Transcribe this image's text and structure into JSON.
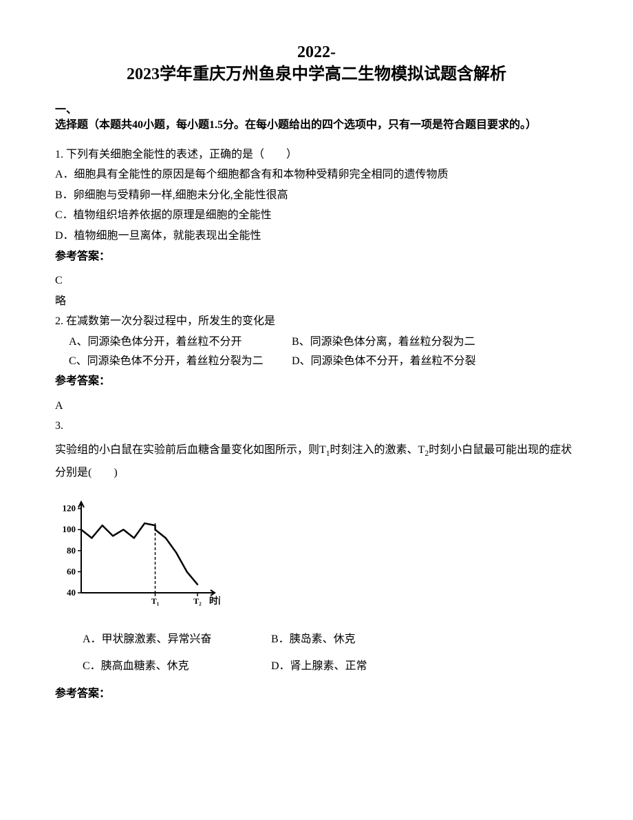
{
  "title_line1": "2022-",
  "title_line2": "2023学年重庆万州鱼泉中学高二生物模拟试题含解析",
  "section1_heading_l1": "一、",
  "section1_heading_l2": "选择题（本题共40小题，每小题1.5分。在每小题给出的四个选项中，只有一项是符合题目要求的。）",
  "q1": {
    "stem": "1. 下列有关细胞全能性的表述，正确的是（　　）",
    "A": "A．细胞具有全能性的原因是每个细胞都含有和本物种受精卵完全相同的遗传物质",
    "B": "B．卵细胞与受精卵一样,细胞未分化,全能性很高",
    "C": "C．植物组织培养依据的原理是细胞的全能性",
    "D": "D．植物细胞一旦离体，就能表现出全能性",
    "ans_label": "参考答案：",
    "ans": "C",
    "note": "略"
  },
  "q2": {
    "stem": "2. 在减数第一次分裂过程中，所发生的变化是",
    "A": "A、同源染色体分开，着丝粒不分开",
    "B": "B、同源染色体分离，着丝粒分裂为二",
    "C": "C、同源染色体不分开，着丝粒分裂为二",
    "D": "D、同源染色体不分开，着丝粒不分裂",
    "ans_label": "参考答案：",
    "ans": "A"
  },
  "q3": {
    "num": "3.",
    "stem_p1": "实验组的小白鼠在实验前后血糖含量变化如图所示，则T",
    "stem_sub1": "1",
    "stem_p2": "时刻注入的激素、T",
    "stem_sub2": "2",
    "stem_p3": "时刻小白鼠最可能出现的症状分别是(　　)",
    "A": "A．甲状腺激素、异常兴奋",
    "B": "B．胰岛素、休克",
    "C": "C．胰高血糖素、休克",
    "D": "D．肾上腺素、正常",
    "ans_label": "参考答案：",
    "chart": {
      "type": "line",
      "y_ticks": [
        40,
        60,
        80,
        100,
        120
      ],
      "x_ticks": [
        "T₁",
        "T₂"
      ],
      "x_axis_label": "时间",
      "stroke_color": "#000000",
      "bg_color": "#ffffff",
      "line_width": 2,
      "data_points": [
        [
          0,
          100
        ],
        [
          8,
          92
        ],
        [
          16,
          104
        ],
        [
          24,
          94
        ],
        [
          32,
          100
        ],
        [
          40,
          92
        ],
        [
          48,
          106
        ],
        [
          56,
          104
        ],
        [
          56,
          100
        ],
        [
          64,
          92
        ],
        [
          72,
          78
        ],
        [
          80,
          60
        ],
        [
          88,
          48
        ]
      ],
      "t1_x": 56,
      "t2_x": 88,
      "xlim": [
        0,
        100
      ],
      "ylim": [
        40,
        125
      ]
    }
  }
}
